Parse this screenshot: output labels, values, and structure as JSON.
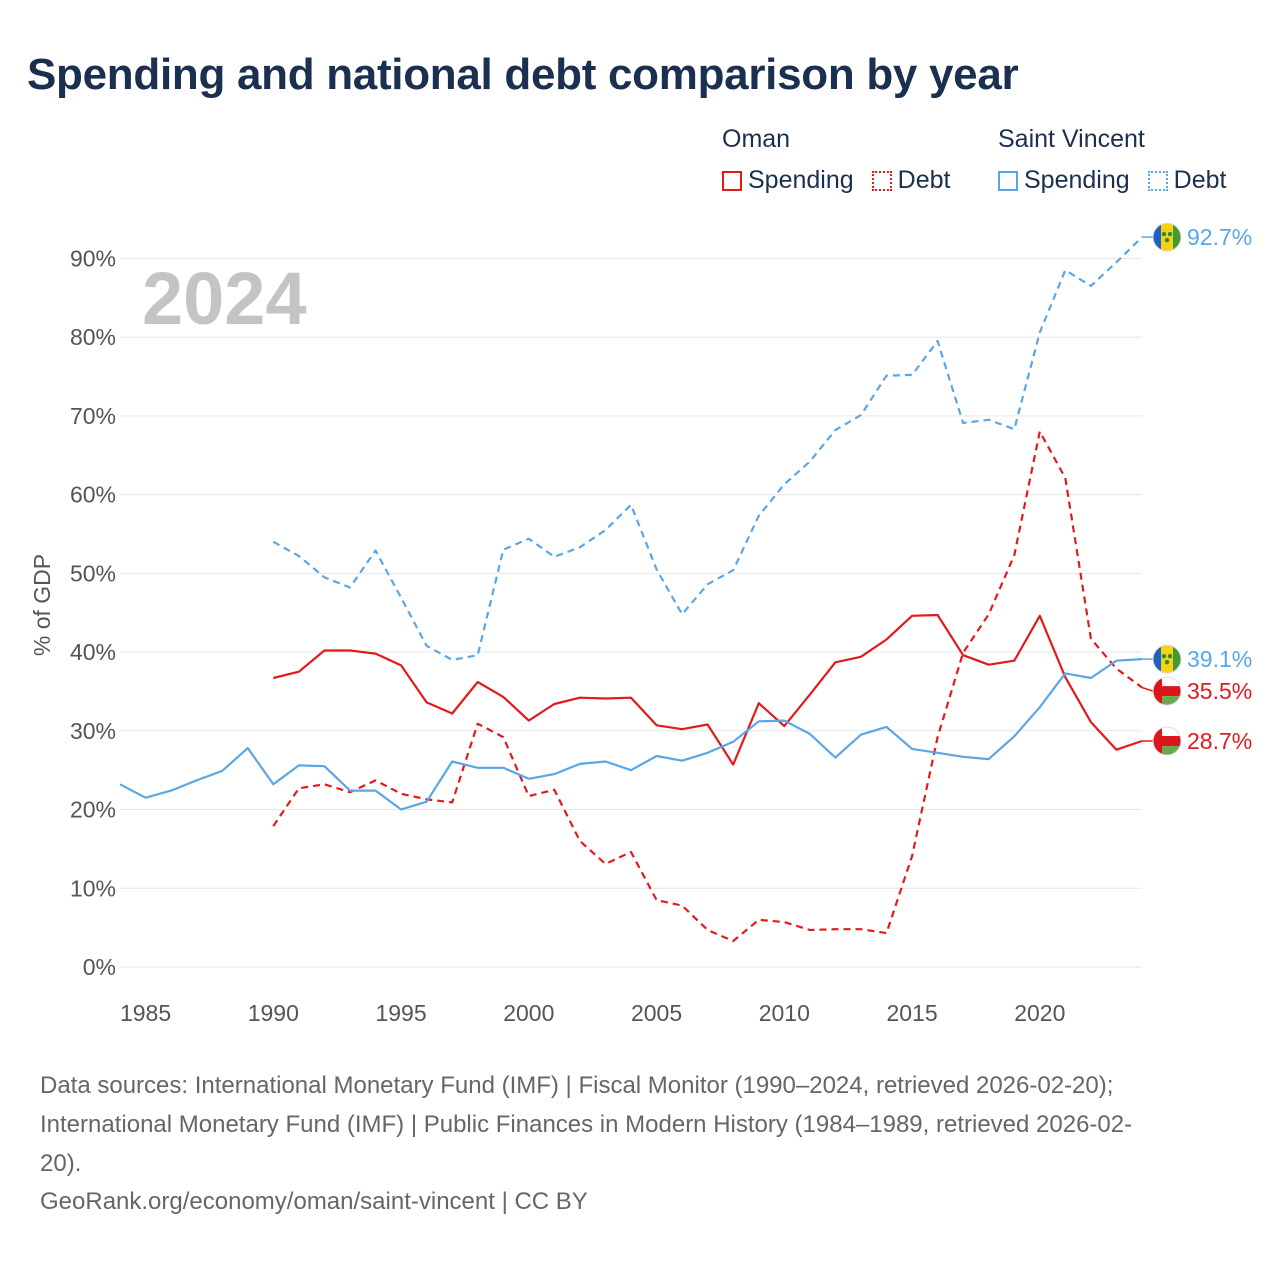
{
  "title": "Spending and national debt comparison by year",
  "legend": {
    "groups": [
      {
        "country": "Oman",
        "items": [
          {
            "label": "Spending",
            "style": "solid",
            "color": "#e31a1c"
          },
          {
            "label": "Debt",
            "style": "dotted",
            "color": "#e31a1c"
          }
        ]
      },
      {
        "country": "Saint Vincent",
        "items": [
          {
            "label": "Spending",
            "style": "solid",
            "color": "#5aa6e6"
          },
          {
            "label": "Debt",
            "style": "dotted",
            "color": "#5aa6e6"
          }
        ]
      }
    ]
  },
  "chart_data": {
    "type": "line",
    "title": "Spending and national debt comparison by year",
    "year_label": "2024",
    "ylabel": "% of GDP",
    "xlabel": "",
    "xlim": [
      1984,
      2024
    ],
    "ylim": [
      0,
      95
    ],
    "x_ticks": [
      1985,
      1990,
      1995,
      2000,
      2005,
      2010,
      2015,
      2020
    ],
    "y_ticks": [
      0,
      10,
      20,
      30,
      40,
      50,
      60,
      70,
      80,
      90
    ],
    "y_tick_labels": [
      "0%",
      "10%",
      "20%",
      "30%",
      "40%",
      "50%",
      "60%",
      "70%",
      "80%",
      "90%"
    ],
    "grid": true,
    "series": [
      {
        "name": "Oman Spending",
        "color": "#e31a1c",
        "dash": "solid",
        "end_label": "28.7%",
        "flag": "oman",
        "x": [
          1990,
          1991,
          1992,
          1993,
          1994,
          1995,
          1996,
          1997,
          1998,
          1999,
          2000,
          2001,
          2002,
          2003,
          2004,
          2005,
          2006,
          2007,
          2008,
          2009,
          2010,
          2011,
          2012,
          2013,
          2014,
          2015,
          2016,
          2017,
          2018,
          2019,
          2020,
          2021,
          2022,
          2023,
          2024
        ],
        "values": [
          36.7,
          37.5,
          40.2,
          40.2,
          39.8,
          38.3,
          33.6,
          32.2,
          36.2,
          34.3,
          31.3,
          33.4,
          34.2,
          34.1,
          34.2,
          30.7,
          30.2,
          30.8,
          25.7,
          33.5,
          30.6,
          34.6,
          38.7,
          39.4,
          41.6,
          44.6,
          44.7,
          39.6,
          38.4,
          38.9,
          44.6,
          36.8,
          31.1,
          27.6,
          28.7
        ]
      },
      {
        "name": "Oman Debt",
        "color": "#e31a1c",
        "dash": "dashed",
        "end_label": "35.5%",
        "flag": "oman",
        "x": [
          1990,
          1991,
          1992,
          1993,
          1994,
          1995,
          1996,
          1997,
          1998,
          1999,
          2000,
          2001,
          2002,
          2003,
          2004,
          2005,
          2006,
          2007,
          2008,
          2009,
          2010,
          2011,
          2012,
          2013,
          2014,
          2015,
          2016,
          2017,
          2018,
          2019,
          2020,
          2021,
          2022,
          2023,
          2024
        ],
        "values": [
          17.9,
          22.7,
          23.2,
          22.2,
          23.7,
          22.0,
          21.3,
          20.9,
          30.9,
          29.2,
          21.7,
          22.5,
          16.0,
          13.1,
          14.6,
          8.5,
          7.8,
          4.7,
          3.3,
          6.0,
          5.7,
          4.7,
          4.8,
          4.8,
          4.3,
          14.1,
          29.2,
          39.9,
          44.8,
          52.3,
          68.0,
          62.1,
          41.7,
          37.9,
          35.5
        ]
      },
      {
        "name": "Saint Vincent Spending",
        "color": "#5aa6e6",
        "dash": "solid",
        "end_label": "39.1%",
        "flag": "saint-vincent",
        "x": [
          1984,
          1985,
          1986,
          1987,
          1988,
          1989,
          1990,
          1991,
          1992,
          1993,
          1994,
          1995,
          1996,
          1997,
          1998,
          1999,
          2000,
          2001,
          2002,
          2003,
          2004,
          2005,
          2006,
          2007,
          2008,
          2009,
          2010,
          2011,
          2012,
          2013,
          2014,
          2015,
          2016,
          2017,
          2018,
          2019,
          2020,
          2021,
          2022,
          2023,
          2024
        ],
        "values": [
          23.2,
          21.5,
          22.4,
          23.7,
          24.9,
          27.8,
          23.2,
          25.6,
          25.5,
          22.4,
          22.4,
          20.0,
          21.0,
          26.1,
          25.3,
          25.3,
          23.9,
          24.5,
          25.8,
          26.1,
          25.0,
          26.8,
          26.2,
          27.2,
          28.6,
          31.2,
          31.3,
          29.6,
          26.6,
          29.5,
          30.5,
          27.7,
          27.2,
          26.7,
          26.4,
          29.3,
          33.0,
          37.3,
          36.7,
          38.9,
          39.1
        ]
      },
      {
        "name": "Saint Vincent Debt",
        "color": "#5aa6e6",
        "dash": "dashed",
        "end_label": "92.7%",
        "flag": "saint-vincent",
        "x": [
          1990,
          1991,
          1992,
          1993,
          1994,
          1995,
          1996,
          1997,
          1998,
          1999,
          2000,
          2001,
          2002,
          2003,
          2004,
          2005,
          2006,
          2007,
          2008,
          2009,
          2010,
          2011,
          2012,
          2013,
          2014,
          2015,
          2016,
          2017,
          2018,
          2019,
          2020,
          2021,
          2022,
          2023,
          2024
        ],
        "values": [
          54.0,
          52.2,
          49.5,
          48.2,
          52.9,
          46.9,
          40.8,
          39.0,
          39.6,
          53.0,
          54.4,
          52.1,
          53.3,
          55.5,
          58.7,
          50.5,
          44.8,
          48.6,
          50.4,
          57.3,
          61.3,
          64.2,
          68.2,
          70.1,
          75.1,
          75.2,
          79.5,
          69.1,
          69.5,
          68.3,
          80.6,
          88.5,
          86.5,
          89.5,
          92.7
        ]
      }
    ]
  },
  "footer": {
    "sources_line1": "Data sources: International Monetary Fund (IMF) | Fiscal Monitor (1990–2024, retrieved 2026-02-20);",
    "sources_line2": "International Monetary Fund (IMF) | Public Finances in Modern History (1984–1989, retrieved 2026-02-",
    "sources_line3": "20).",
    "credit": "GeoRank.org/economy/oman/saint-vincent | CC BY"
  }
}
